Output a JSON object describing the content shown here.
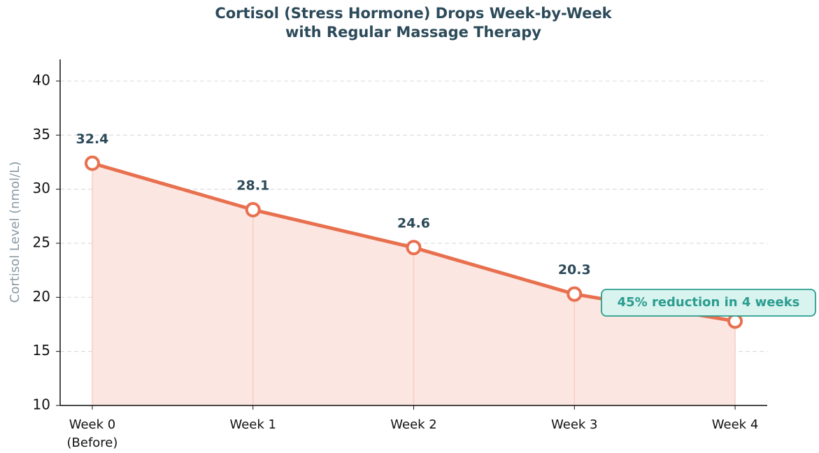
{
  "chart_data": {
    "type": "line",
    "title": "Cortisol (Stress Hormone) Drops Week-by-Week",
    "subtitle": "with Regular Massage Therapy",
    "y_label": "Cortisol Level (nmol/L)",
    "categories": [
      "Week 0\n(Before)",
      "Week 1",
      "Week 2",
      "Week 3",
      "Week 4"
    ],
    "values": [
      32.4,
      28.1,
      24.6,
      20.3,
      17.8
    ],
    "color": "#e8704f",
    "fill_color": "#fbe6e1",
    "ylim": [
      10,
      42
    ],
    "yticks": [
      10,
      15,
      20,
      25,
      30,
      35,
      40
    ],
    "grid": true,
    "annotation": "45% reduction in 4 weeks"
  }
}
